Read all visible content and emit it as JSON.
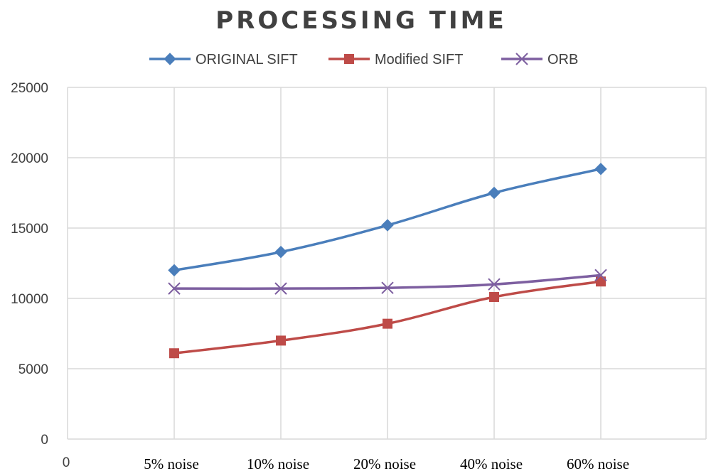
{
  "chart_data": {
    "type": "line",
    "title": "PROCESSING TIME",
    "xlabel": "",
    "ylabel": "",
    "origin_label": "0",
    "categories": [
      "5% noise",
      "10% noise",
      "20% noise",
      "40% noise",
      "60% noise"
    ],
    "ylim": [
      0,
      25000
    ],
    "yticks": [
      "0",
      "5000",
      "10000",
      "15000",
      "20000",
      "25000"
    ],
    "grid": true,
    "legend_position": "top-center",
    "series": [
      {
        "name": "ORIGINAL SIFT",
        "marker": "diamond",
        "color": "#4a7ebb",
        "values": [
          12000,
          13300,
          15200,
          17500,
          19200
        ]
      },
      {
        "name": "Modified SIFT",
        "marker": "square",
        "color": "#be4b48",
        "values": [
          6100,
          7000,
          8200,
          10100,
          11200
        ]
      },
      {
        "name": "ORB",
        "marker": "x",
        "color": "#7d5fa0",
        "values": [
          10700,
          10700,
          10750,
          11000,
          11650
        ]
      }
    ]
  }
}
